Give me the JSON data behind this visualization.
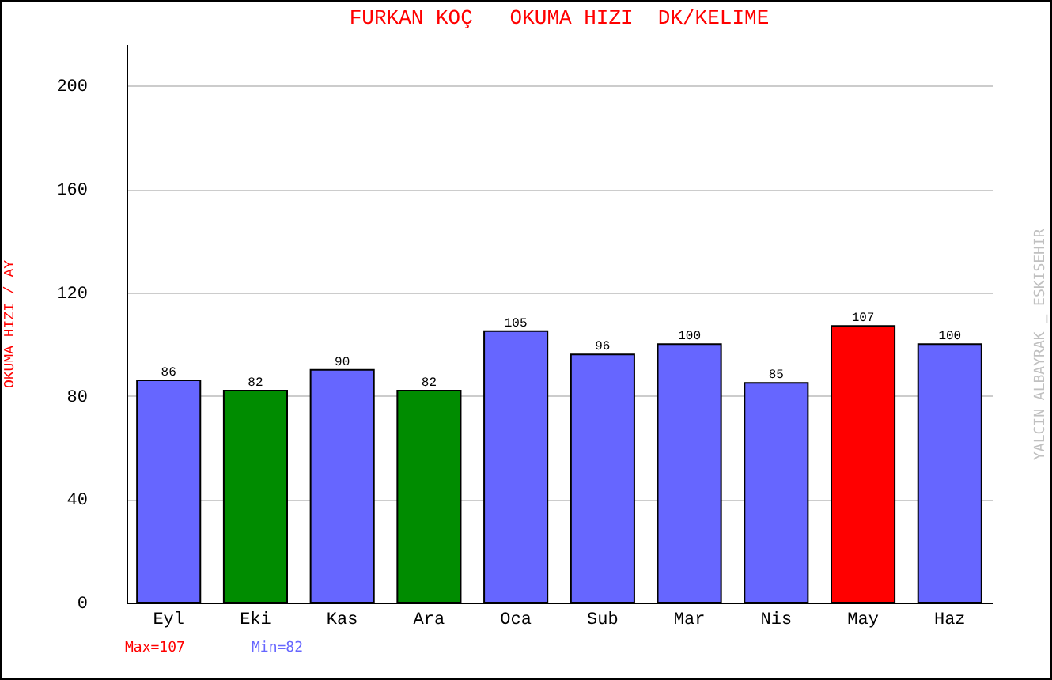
{
  "chart_data": {
    "type": "bar",
    "title": "FURKAN KOÇ   OKUMA HIZI  DK/KELIME",
    "ylabel": "OKUMA HIZI / AY",
    "categories": [
      "Eyl",
      "Eki",
      "Kas",
      "Ara",
      "Oca",
      "Sub",
      "Mar",
      "Nis",
      "May",
      "Haz"
    ],
    "values": [
      86,
      82,
      90,
      82,
      105,
      96,
      100,
      85,
      107,
      100
    ],
    "colors": [
      "#6666ff",
      "#008c00",
      "#6666ff",
      "#008c00",
      "#6666ff",
      "#6666ff",
      "#6666ff",
      "#6666ff",
      "#ff0000",
      "#6666ff"
    ],
    "ylim": [
      0,
      216
    ],
    "yticks": [
      0,
      40,
      80,
      120,
      160,
      200
    ],
    "grid": "y",
    "data_labels": true,
    "annotations": [
      "Max=107",
      "Min=82",
      "YALCIN ALBAYRAK _ ESKISEHIR"
    ]
  }
}
